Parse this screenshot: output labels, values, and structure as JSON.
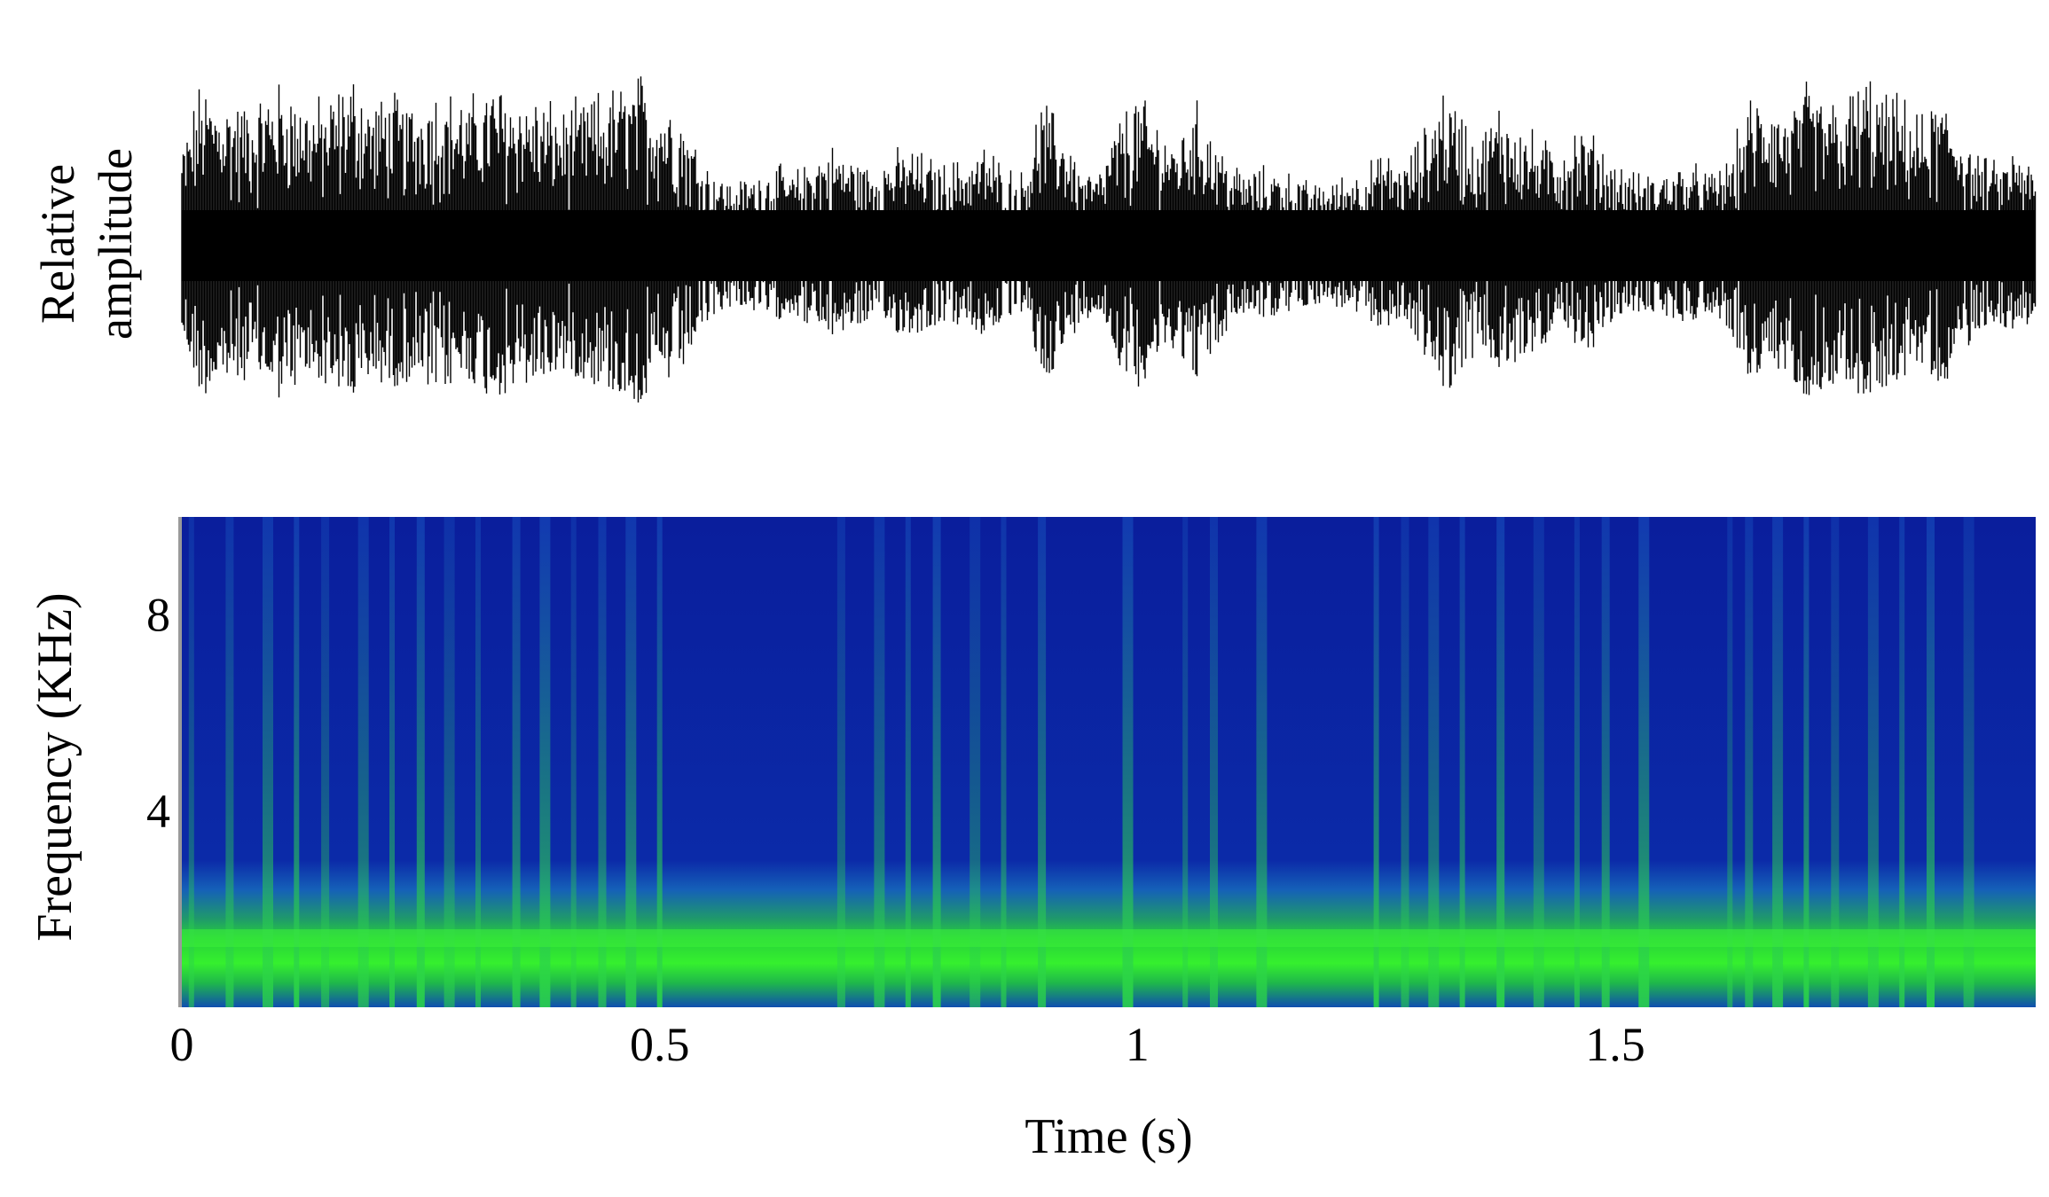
{
  "chart_data": [
    {
      "type": "area",
      "panel": "waveform",
      "ylabel_lines": [
        "Relative",
        "amplitude"
      ],
      "xlim": [
        0,
        1.94
      ],
      "color": "#000000",
      "x": [
        0.0,
        0.02,
        0.04,
        0.06,
        0.08,
        0.1,
        0.12,
        0.14,
        0.16,
        0.18,
        0.2,
        0.22,
        0.24,
        0.26,
        0.28,
        0.3,
        0.32,
        0.34,
        0.36,
        0.38,
        0.4,
        0.42,
        0.44,
        0.46,
        0.48,
        0.5,
        0.52,
        0.54,
        0.56,
        0.58,
        0.6,
        0.62,
        0.64,
        0.66,
        0.68,
        0.7,
        0.72,
        0.74,
        0.76,
        0.78,
        0.8,
        0.82,
        0.84,
        0.86,
        0.88,
        0.9,
        0.92,
        0.94,
        0.96,
        0.98,
        1.0,
        1.02,
        1.04,
        1.06,
        1.08,
        1.1,
        1.12,
        1.14,
        1.16,
        1.18,
        1.2,
        1.22,
        1.24,
        1.26,
        1.28,
        1.3,
        1.32,
        1.34,
        1.36,
        1.38,
        1.4,
        1.42,
        1.44,
        1.46,
        1.48,
        1.5,
        1.52,
        1.54,
        1.56,
        1.58,
        1.6,
        1.62,
        1.64,
        1.66,
        1.68,
        1.7,
        1.72,
        1.74,
        1.76,
        1.78,
        1.8,
        1.82,
        1.84,
        1.86,
        1.88,
        1.9,
        1.92,
        1.94
      ],
      "envelope": [
        0.55,
        0.9,
        0.85,
        0.8,
        0.8,
        0.92,
        0.85,
        0.8,
        0.85,
        0.95,
        0.8,
        0.85,
        0.8,
        0.9,
        0.85,
        0.8,
        0.9,
        0.9,
        0.85,
        0.8,
        0.75,
        0.8,
        0.85,
        0.9,
        0.95,
        0.85,
        0.8,
        0.55,
        0.4,
        0.35,
        0.4,
        0.45,
        0.4,
        0.5,
        0.55,
        0.5,
        0.45,
        0.5,
        0.55,
        0.5,
        0.45,
        0.5,
        0.55,
        0.45,
        0.4,
        0.8,
        0.7,
        0.45,
        0.4,
        0.7,
        0.85,
        0.7,
        0.6,
        0.8,
        0.65,
        0.45,
        0.4,
        0.45,
        0.4,
        0.35,
        0.35,
        0.4,
        0.45,
        0.5,
        0.45,
        0.65,
        0.9,
        0.75,
        0.6,
        0.8,
        0.7,
        0.6,
        0.55,
        0.65,
        0.6,
        0.45,
        0.4,
        0.4,
        0.45,
        0.45,
        0.4,
        0.5,
        0.8,
        0.85,
        0.75,
        0.9,
        0.85,
        0.8,
        0.95,
        0.85,
        0.8,
        0.7,
        0.85,
        0.7,
        0.5,
        0.45,
        0.55,
        0.4
      ]
    },
    {
      "type": "heatmap",
      "panel": "spectrogram",
      "ylabel": "Frequency (KHz)",
      "xlabel": "Time (s)",
      "xlim": [
        0,
        1.94
      ],
      "ylim": [
        0,
        10
      ],
      "xticks": [
        {
          "value": 0,
          "label": "0"
        },
        {
          "value": 0.5,
          "label": "0.5"
        },
        {
          "value": 1,
          "label": "1"
        },
        {
          "value": 1.5,
          "label": "1.5"
        }
      ],
      "yticks": [
        {
          "value": 4,
          "label": "4"
        },
        {
          "value": 8,
          "label": "8"
        }
      ],
      "colormap": [
        "#000a40",
        "#0020a8",
        "#1a5ac8",
        "#21a05a",
        "#1edc30",
        "#c8ff28"
      ],
      "background_color": "#0a1a9a",
      "band_color": "#28e030",
      "dominant_band_khz": [
        0.5,
        1.7
      ],
      "clicks_s": [
        0.01,
        0.05,
        0.09,
        0.12,
        0.15,
        0.19,
        0.22,
        0.25,
        0.28,
        0.31,
        0.35,
        0.38,
        0.41,
        0.44,
        0.47,
        0.5,
        0.69,
        0.73,
        0.76,
        0.79,
        0.83,
        0.86,
        0.9,
        0.99,
        1.05,
        1.08,
        1.13,
        1.25,
        1.28,
        1.31,
        1.34,
        1.38,
        1.42,
        1.46,
        1.49,
        1.53,
        1.62,
        1.64,
        1.67,
        1.7,
        1.73,
        1.77,
        1.8,
        1.83,
        1.87
      ]
    }
  ]
}
